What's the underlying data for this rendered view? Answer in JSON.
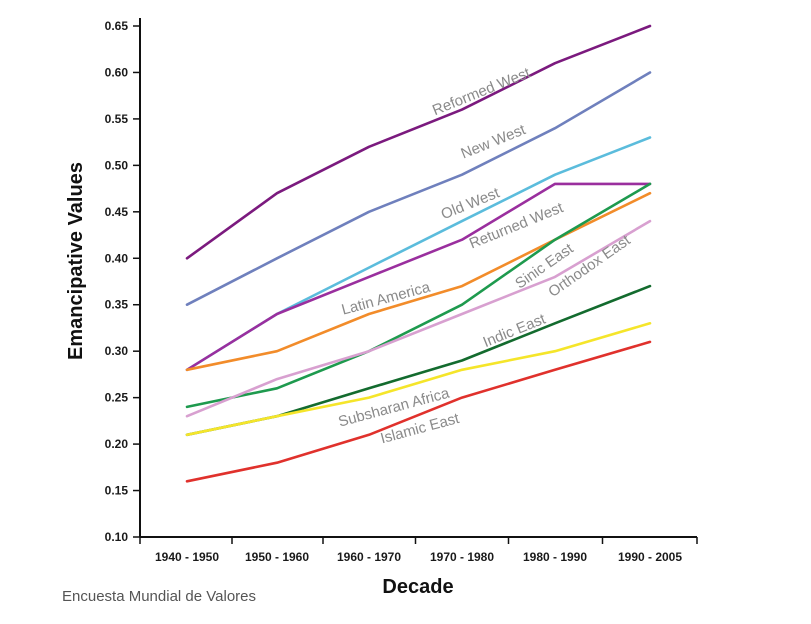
{
  "chart_data": {
    "type": "line",
    "title": "",
    "xlabel": "Decade",
    "ylabel": "Emancipative Values",
    "categories": [
      "1940 - 1950",
      "1950 - 1960",
      "1960 - 1970",
      "1970 - 1980",
      "1980 - 1990",
      "1990 - 2005"
    ],
    "ylim": [
      0.1,
      0.65
    ],
    "yticks": [
      "0.10",
      "0.15",
      "0.20",
      "0.25",
      "0.30",
      "0.35",
      "0.40",
      "0.45",
      "0.50",
      "0.55",
      "0.60",
      "0.65"
    ],
    "grid": false,
    "legend": "inline labels",
    "series": [
      {
        "name": "Reformed West",
        "color": "#7b1a7e",
        "values": [
          0.4,
          0.47,
          0.52,
          0.56,
          0.61,
          0.65
        ]
      },
      {
        "name": "New West",
        "color": "#6f80bd",
        "values": [
          0.35,
          0.4,
          0.45,
          0.49,
          0.54,
          0.6
        ]
      },
      {
        "name": "Old West",
        "color": "#5bbcdc",
        "values": [
          0.28,
          0.34,
          0.39,
          0.44,
          0.49,
          0.53
        ]
      },
      {
        "name": "Returned West",
        "color": "#9a2f9e",
        "values": [
          0.28,
          0.34,
          0.38,
          0.42,
          0.48,
          0.48
        ]
      },
      {
        "name": "Latin America",
        "color": "#f28c2a",
        "values": [
          0.28,
          0.3,
          0.34,
          0.37,
          0.42,
          0.47
        ]
      },
      {
        "name": "Sinic East",
        "color": "#1e9a4e",
        "values": [
          0.24,
          0.26,
          0.3,
          0.35,
          0.42,
          0.48
        ]
      },
      {
        "name": "Orthodox East",
        "color": "#d8a0d0",
        "values": [
          0.23,
          0.27,
          0.3,
          0.34,
          0.38,
          0.44
        ]
      },
      {
        "name": "Indic East",
        "color": "#136b2e",
        "values": [
          0.21,
          0.23,
          0.26,
          0.29,
          0.33,
          0.37
        ]
      },
      {
        "name": "Subsharan Africa",
        "color": "#f5e52a",
        "values": [
          0.21,
          0.23,
          0.25,
          0.28,
          0.3,
          0.33
        ]
      },
      {
        "name": "Islamic East",
        "color": "#e0312c",
        "values": [
          0.16,
          0.18,
          0.21,
          0.25,
          0.28,
          0.31
        ]
      }
    ],
    "annotations": [
      {
        "text": "Reformed West",
        "series": "Reformed West"
      },
      {
        "text": "New West",
        "series": "New West"
      },
      {
        "text": "Old West",
        "series": "Old West"
      },
      {
        "text": "Returned West",
        "series": "Returned West"
      },
      {
        "text": "Latin America",
        "series": "Latin America"
      },
      {
        "text": "Sinic East",
        "series": "Sinic East"
      },
      {
        "text": "Orthodox East",
        "series": "Orthodox East"
      },
      {
        "text": "Indic East",
        "series": "Indic East"
      },
      {
        "text": "Subsharan Africa",
        "series": "Subsharan Africa"
      },
      {
        "text": "Islamic East",
        "series": "Islamic East"
      }
    ],
    "source": "Encuesta Mundial de Valores"
  }
}
